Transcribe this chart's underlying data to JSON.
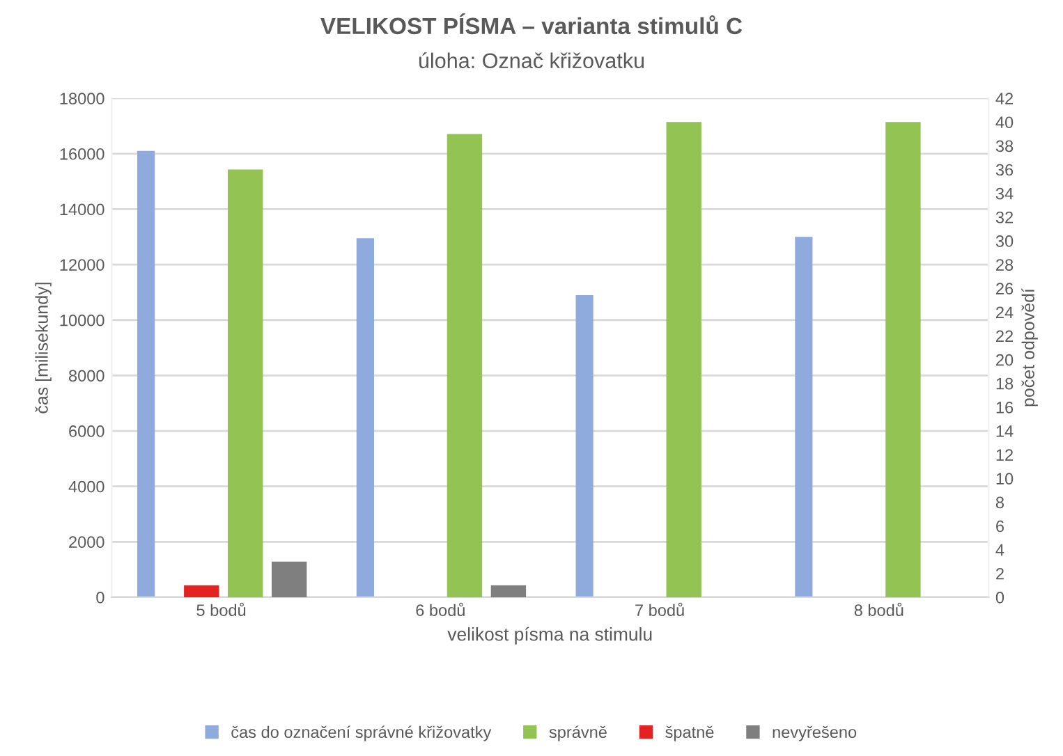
{
  "chart_data": {
    "type": "bar",
    "title": "VELIKOST PÍSMA – varianta stimulů C",
    "subtitle": "úloha: Označ křižovatku",
    "xlabel": "velikost písma na stimulu",
    "ylabel": "čas [milisekundy]",
    "y2label": "počet odpovědí",
    "categories": [
      "5 bodů",
      "6 bodů",
      "7 bodů",
      "8 bodů"
    ],
    "series": [
      {
        "name": "čas do označení správné křižovatky",
        "color": "#8faadc",
        "values": [
          16100,
          12950,
          10900,
          13000
        ]
      },
      {
        "name": "správně",
        "color": "#92c353",
        "values": [
          36,
          39,
          40,
          40
        ],
        "axis": "y2"
      },
      {
        "name": "špatně",
        "color": "#e32222",
        "values": [
          1,
          0,
          0,
          0
        ],
        "axis": "y2"
      },
      {
        "name": "nevyřešeno",
        "color": "#7f7f7f",
        "values": [
          3,
          1,
          0,
          0
        ],
        "axis": "y2"
      }
    ],
    "ylim": [
      0,
      18000
    ],
    "yticks": [
      0,
      2000,
      4000,
      6000,
      8000,
      10000,
      12000,
      14000,
      16000,
      18000
    ],
    "y2lim": [
      0,
      42
    ],
    "y2ticks": [
      0,
      2,
      4,
      6,
      8,
      10,
      12,
      14,
      16,
      18,
      20,
      22,
      24,
      26,
      28,
      30,
      32,
      34,
      36,
      38,
      40,
      42
    ],
    "grid": "y",
    "legend": "bottom"
  }
}
